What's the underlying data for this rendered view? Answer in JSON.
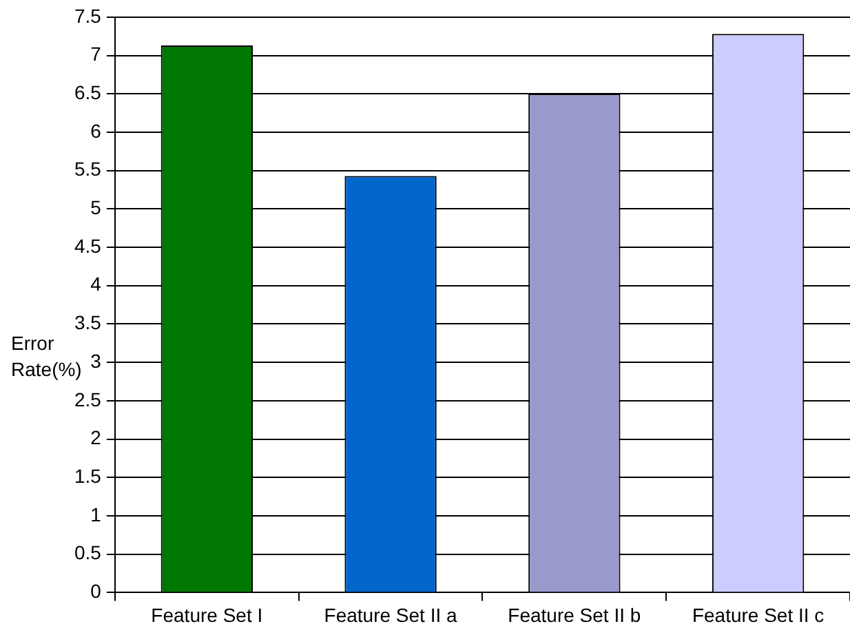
{
  "chart_data": {
    "type": "bar",
    "ylabel": "Error Rate(%)",
    "categories": [
      "Feature Set I",
      "Feature Set II a",
      "Feature Set II b",
      "Feature Set II c"
    ],
    "values": [
      7.13,
      5.43,
      6.5,
      7.28
    ],
    "colors": [
      "#007700",
      "#0066cc",
      "#9999cc",
      "#ccccff"
    ],
    "ylim": [
      0,
      7.5
    ],
    "yticks": [
      0,
      0.5,
      1,
      1.5,
      2,
      2.5,
      3,
      3.5,
      4,
      4.5,
      5,
      5.5,
      6,
      6.5,
      7,
      7.5
    ],
    "grid": "y",
    "legend": false
  }
}
